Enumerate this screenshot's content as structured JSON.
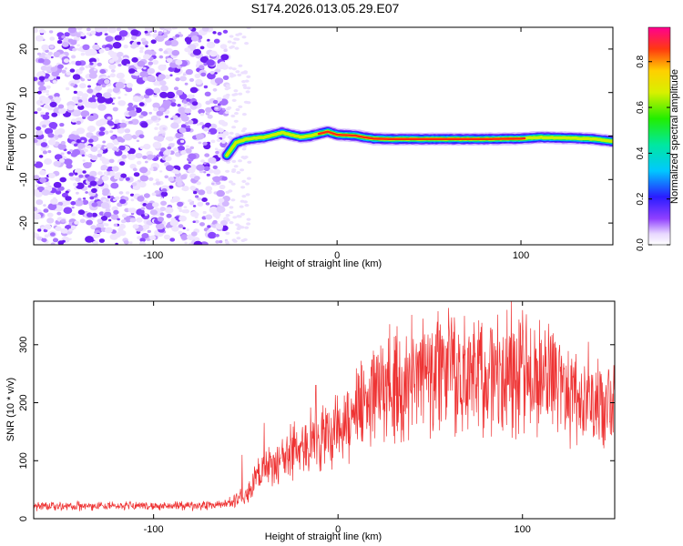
{
  "figure": {
    "title": "S174.2026.013.05.29.E07"
  },
  "chart_data": [
    {
      "type": "heatmap",
      "name": "spectrogram",
      "xlabel": "Height of straight line (km)",
      "ylabel": "Frequency (Hz)",
      "xlim": [
        -165,
        150
      ],
      "ylim": [
        -25,
        25
      ],
      "x_ticks": [
        -100,
        0,
        100
      ],
      "x_tick_labels": [
        "-100",
        "0",
        "100"
      ],
      "y_ticks": [
        -20,
        -10,
        0,
        10,
        20
      ],
      "y_tick_labels": [
        "-20",
        "-10",
        "0",
        "10",
        "20"
      ],
      "noise_region_x": [
        -165,
        -60
      ],
      "signal_trace": {
        "x": [
          -60,
          -55,
          -50,
          -45,
          -40,
          -35,
          -30,
          -25,
          -20,
          -15,
          -10,
          -5,
          0,
          5,
          10,
          15,
          20,
          30,
          40,
          60,
          80,
          100,
          110,
          120,
          130,
          140,
          150
        ],
        "y": [
          -4.5,
          -1.5,
          -0.8,
          -0.5,
          -0.3,
          0.2,
          0.8,
          0.3,
          -0.2,
          0.0,
          0.5,
          1.0,
          0.3,
          0.2,
          0.1,
          -0.3,
          -0.6,
          -0.7,
          -0.7,
          -0.7,
          -0.7,
          -0.6,
          -0.3,
          -0.4,
          -0.5,
          -0.7,
          -1.2
        ],
        "amplitude": [
          0.3,
          0.4,
          0.5,
          0.6,
          0.7,
          0.8,
          0.75,
          0.8,
          0.85,
          0.8,
          0.85,
          0.9,
          0.9,
          0.92,
          0.95,
          0.95,
          0.95,
          0.95,
          0.95,
          0.95,
          0.95,
          0.9,
          0.7,
          0.75,
          0.8,
          0.8,
          0.4
        ]
      },
      "colorbar": {
        "label": "Normalized spectral amplitude",
        "range": [
          0,
          0.95
        ],
        "ticks": [
          0.0,
          0.2,
          0.4,
          0.6,
          0.8
        ],
        "tick_labels": [
          "0.0",
          "0.2",
          "0.4",
          "0.6",
          "0.8"
        ]
      }
    },
    {
      "type": "line",
      "name": "snr",
      "xlabel": "Height of straight line (km)",
      "ylabel": "SNR (10 * v/v)",
      "xlim": [
        -165,
        150
      ],
      "ylim": [
        0,
        375
      ],
      "x_ticks": [
        -100,
        0,
        100
      ],
      "x_tick_labels": [
        "-100",
        "0",
        "100"
      ],
      "y_ticks": [
        0,
        100,
        200,
        300
      ],
      "y_tick_labels": [
        "0",
        "100",
        "200",
        "300"
      ],
      "color": "#ee3333",
      "envelope": {
        "x": [
          -165,
          -120,
          -80,
          -60,
          -50,
          -45,
          -40,
          -30,
          -20,
          -10,
          0,
          10,
          20,
          30,
          40,
          50,
          60,
          70,
          80,
          90,
          100,
          110,
          120,
          130,
          140,
          150
        ],
        "y": [
          22,
          22,
          22,
          25,
          40,
          65,
          85,
          105,
          125,
          140,
          160,
          185,
          215,
          240,
          252,
          255,
          250,
          248,
          250,
          250,
          245,
          240,
          230,
          215,
          200,
          190
        ]
      },
      "spikes": [
        {
          "x": 94,
          "y": 375
        },
        {
          "x": 46,
          "y": 345
        },
        {
          "x": -12,
          "y": 230
        },
        {
          "x": -40,
          "y": 165
        },
        {
          "x": -52,
          "y": 110
        }
      ]
    }
  ]
}
